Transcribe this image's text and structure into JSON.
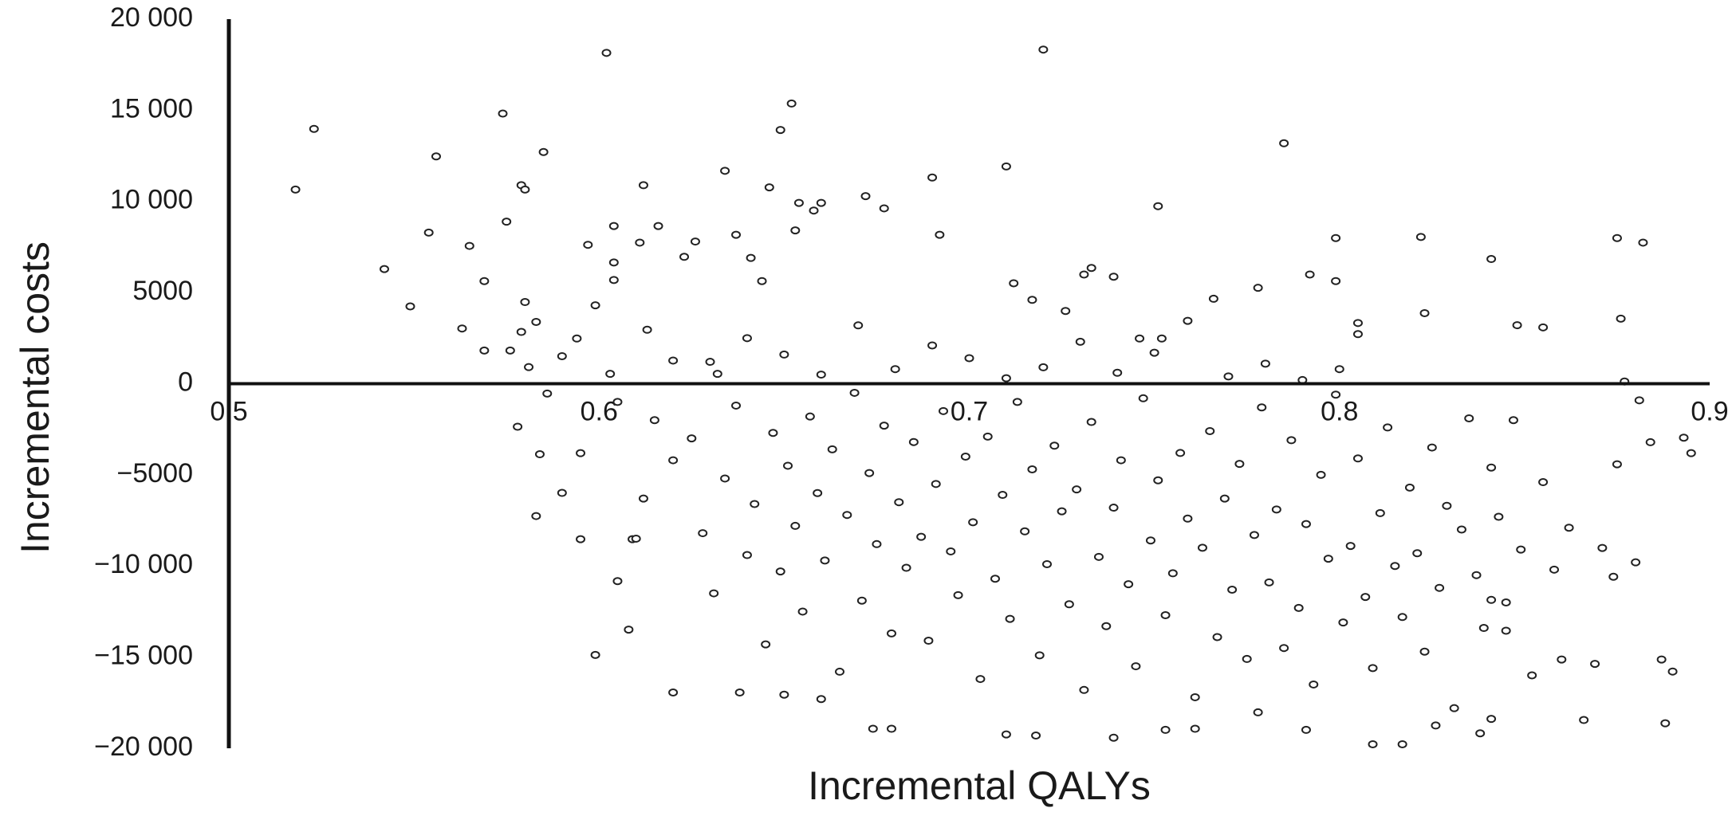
{
  "chart_data": {
    "type": "scatter",
    "x_label": "Incremental QALYs",
    "y_label": "Incremental costs",
    "xlim": [
      0.5,
      0.9
    ],
    "xticks": [
      0.5,
      0.6,
      0.7,
      0.8,
      0.9
    ],
    "ylim": [
      -20000,
      20000
    ],
    "yticks": [
      {
        "value": 20000,
        "label": "20 000"
      },
      {
        "value": 15000,
        "label": "15 000"
      },
      {
        "value": 10000,
        "label": "10 000"
      },
      5000,
      0,
      {
        "value": -5000,
        "label": "−5000"
      },
      {
        "value": -10000,
        "label": "−10 000"
      },
      {
        "value": -15000,
        "label": "−15 000"
      },
      {
        "value": -20000,
        "label": "−20 000"
      }
    ],
    "color": "#222222",
    "x": [
      0.518,
      0.523,
      0.542,
      0.549,
      0.554,
      0.556,
      0.563,
      0.565,
      0.569,
      0.569,
      0.574,
      0.575,
      0.576,
      0.579,
      0.58,
      0.58,
      0.579,
      0.583,
      0.585,
      0.581,
      0.578,
      0.583,
      0.584,
      0.586,
      0.59,
      0.594,
      0.597,
      0.599,
      0.602,
      0.604,
      0.604,
      0.604,
      0.603,
      0.595,
      0.595,
      0.59,
      0.599,
      0.605,
      0.608,
      0.609,
      0.611,
      0.612,
      0.613,
      0.616,
      0.62,
      0.62,
      0.623,
      0.626,
      0.632,
      0.634,
      0.637,
      0.641,
      0.644,
      0.646,
      0.649,
      0.652,
      0.653,
      0.654,
      0.658,
      0.66,
      0.672,
      0.677,
      0.69,
      0.692,
      0.71,
      0.72,
      0.712,
      0.717,
      0.726,
      0.731,
      0.733,
      0.739,
      0.751,
      0.746,
      0.752,
      0.759,
      0.766,
      0.778,
      0.785,
      0.792,
      0.799,
      0.799,
      0.805,
      0.805,
      0.822,
      0.823,
      0.841,
      0.848,
      0.855,
      0.875,
      0.882,
      0.876,
      0.877,
      0.875,
      0.881,
      0.884,
      0.893,
      0.895,
      0.887,
      0.888,
      0.89,
      0.88,
      0.874,
      0.871,
      0.869,
      0.866,
      0.86,
      0.845,
      0.841,
      0.841,
      0.838,
      0.826,
      0.817,
      0.809,
      0.791,
      0.778,
      0.761,
      0.753,
      0.739,
      0.718,
      0.71,
      0.674,
      0.679,
      0.66,
      0.65,
      0.638,
      0.625,
      0.628,
      0.631,
      0.634,
      0.637,
      0.64,
      0.642,
      0.645,
      0.647,
      0.649,
      0.651,
      0.653,
      0.655,
      0.657,
      0.659,
      0.661,
      0.663,
      0.665,
      0.667,
      0.669,
      0.671,
      0.673,
      0.675,
      0.677,
      0.679,
      0.681,
      0.683,
      0.685,
      0.687,
      0.689,
      0.691,
      0.693,
      0.695,
      0.697,
      0.699,
      0.701,
      0.703,
      0.705,
      0.707,
      0.709,
      0.711,
      0.713,
      0.715,
      0.717,
      0.719,
      0.721,
      0.723,
      0.725,
      0.727,
      0.729,
      0.731,
      0.733,
      0.735,
      0.737,
      0.739,
      0.741,
      0.743,
      0.745,
      0.747,
      0.749,
      0.751,
      0.753,
      0.755,
      0.757,
      0.759,
      0.761,
      0.763,
      0.765,
      0.767,
      0.769,
      0.771,
      0.773,
      0.775,
      0.777,
      0.779,
      0.781,
      0.783,
      0.785,
      0.787,
      0.789,
      0.791,
      0.793,
      0.795,
      0.797,
      0.799,
      0.801,
      0.803,
      0.805,
      0.807,
      0.809,
      0.811,
      0.813,
      0.815,
      0.817,
      0.819,
      0.821,
      0.823,
      0.825,
      0.827,
      0.829,
      0.831,
      0.833,
      0.835,
      0.837,
      0.839,
      0.841,
      0.843,
      0.845,
      0.847,
      0.849,
      0.852,
      0.855,
      0.858,
      0.862,
      0.63,
      0.64,
      0.65,
      0.66,
      0.67,
      0.68,
      0.69,
      0.7,
      0.71,
      0.72,
      0.73,
      0.74,
      0.75,
      0.77,
      0.78,
      0.79,
      0.8,
      0.61,
      0.615,
      0.62,
      0.605,
      0.612
    ],
    "values": [
      10650,
      13980,
      6290,
      4240,
      8290,
      12470,
      3030,
      7560,
      5630,
      1820,
      14820,
      8890,
      1820,
      10890,
      10650,
      4480,
      2840,
      3390,
      12710,
      910,
      -2360,
      -7260,
      -3870,
      -540,
      1510,
      2480,
      7620,
      4300,
      18150,
      8650,
      6650,
      5690,
      540,
      -3810,
      -8530,
      -5990,
      -14880,
      -10830,
      -13490,
      -8530,
      7740,
      10890,
      2960,
      8650,
      -16940,
      1270,
      6960,
      7800,
      540,
      11680,
      8170,
      6900,
      5630,
      10770,
      13920,
      15370,
      8410,
      9920,
      9500,
      9920,
      10290,
      9620,
      11310,
      8170,
      11920,
      18330,
      5510,
      4600,
      3990,
      5990,
      6350,
      5870,
      9740,
      2480,
      2480,
      3450,
      4660,
      5260,
      13190,
      5990,
      7990,
      5630,
      3330,
      2720,
      8050,
      3870,
      6840,
      3210,
      3090,
      7990,
      7740,
      3570,
      120,
      -4420,
      -910,
      -3210,
      -2960,
      -3810,
      -15130,
      -18630,
      -15790,
      -9800,
      -10590,
      -9010,
      -15370,
      -18450,
      -15130,
      -13550,
      -11860,
      -18390,
      -19180,
      -18750,
      -19780,
      -19780,
      -18990,
      -18030,
      -18930,
      -18990,
      -19420,
      -19300,
      -19240,
      -18930,
      -18930,
      -17300,
      -17060,
      -16940,
      -3000,
      -8200,
      -11500,
      -5200,
      -1200,
      -9400,
      -6600,
      -14300,
      -2700,
      -10300,
      -4500,
      -7800,
      -12500,
      -1800,
      -6000,
      -9700,
      -3600,
      -15800,
      -7200,
      -500,
      -11900,
      -4900,
      -8800,
      -2300,
      -13700,
      -6500,
      -10100,
      -3200,
      -8400,
      -14100,
      -5500,
      -1500,
      -9200,
      -11600,
      -4000,
      -7600,
      -16200,
      -2900,
      -10700,
      -6100,
      -12900,
      -1000,
      -8100,
      -4700,
      -14900,
      -9900,
      -3400,
      -7000,
      -12100,
      -5800,
      -16800,
      -2100,
      -9500,
      -13300,
      -6800,
      -4200,
      -11000,
      -15500,
      -800,
      -8600,
      -5300,
      -12700,
      -10400,
      -3800,
      -7400,
      -17200,
      -9000,
      -2600,
      -13900,
      -6300,
      -11300,
      -4400,
      -15100,
      -8300,
      -1300,
      -10900,
      -6900,
      -14500,
      -3100,
      -12300,
      -7700,
      -16500,
      -5000,
      -9600,
      -600,
      -13100,
      -8900,
      -4100,
      -11700,
      -15600,
      -7100,
      -2400,
      -10000,
      -12800,
      -5700,
      -9300,
      -14700,
      -3500,
      -11200,
      -6700,
      -17800,
      -8000,
      -1900,
      -10500,
      -13400,
      -4600,
      -7300,
      -12000,
      -2000,
      -9100,
      -16000,
      -5400,
      -10200,
      -7900,
      1200,
      2500,
      1600,
      500,
      3200,
      800,
      2100,
      1400,
      300,
      900,
      2300,
      600,
      1700,
      400,
      1100,
      200,
      800,
      -8500,
      -2000,
      -4200,
      -1000,
      -6300
    ]
  }
}
